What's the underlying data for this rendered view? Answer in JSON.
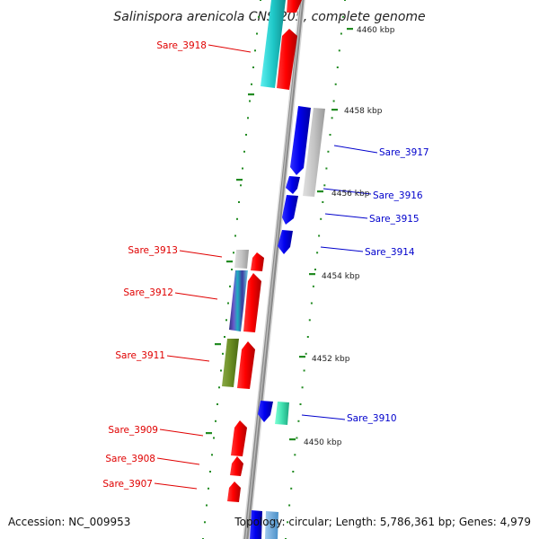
{
  "title": "Salinispora arenicola CNS-205, complete genome",
  "accession": "Accession: NC_009953",
  "summary": "Topology: circular; Length: 5,786,361 bp; Genes: 4,979",
  "colors": {
    "forward": "#ff0000",
    "reverse": "#0000ff",
    "backbone": "#808080",
    "dots": "#228b22"
  },
  "ticks": [
    {
      "label": "4460 kbp"
    },
    {
      "label": "4458 kbp"
    },
    {
      "label": "4456 kbp"
    },
    {
      "label": "4454 kbp"
    },
    {
      "label": "4452 kbp"
    },
    {
      "label": "4450 kbp"
    }
  ],
  "genes": [
    {
      "label": "Sare_3918",
      "color": "#e00000"
    },
    {
      "label": "Sare_3917",
      "color": "#0000cc"
    },
    {
      "label": "Sare_3916",
      "color": "#0000cc"
    },
    {
      "label": "Sare_3915",
      "color": "#0000cc"
    },
    {
      "label": "Sare_3914",
      "color": "#0000cc"
    },
    {
      "label": "Sare_3913",
      "color": "#e00000"
    },
    {
      "label": "Sare_3912",
      "color": "#e00000"
    },
    {
      "label": "Sare_3911",
      "color": "#e00000"
    },
    {
      "label": "Sare_3910",
      "color": "#0000cc"
    },
    {
      "label": "Sare_3909",
      "color": "#e00000"
    },
    {
      "label": "Sare_3908",
      "color": "#e00000"
    },
    {
      "label": "Sare_3907",
      "color": "#e00000"
    }
  ]
}
